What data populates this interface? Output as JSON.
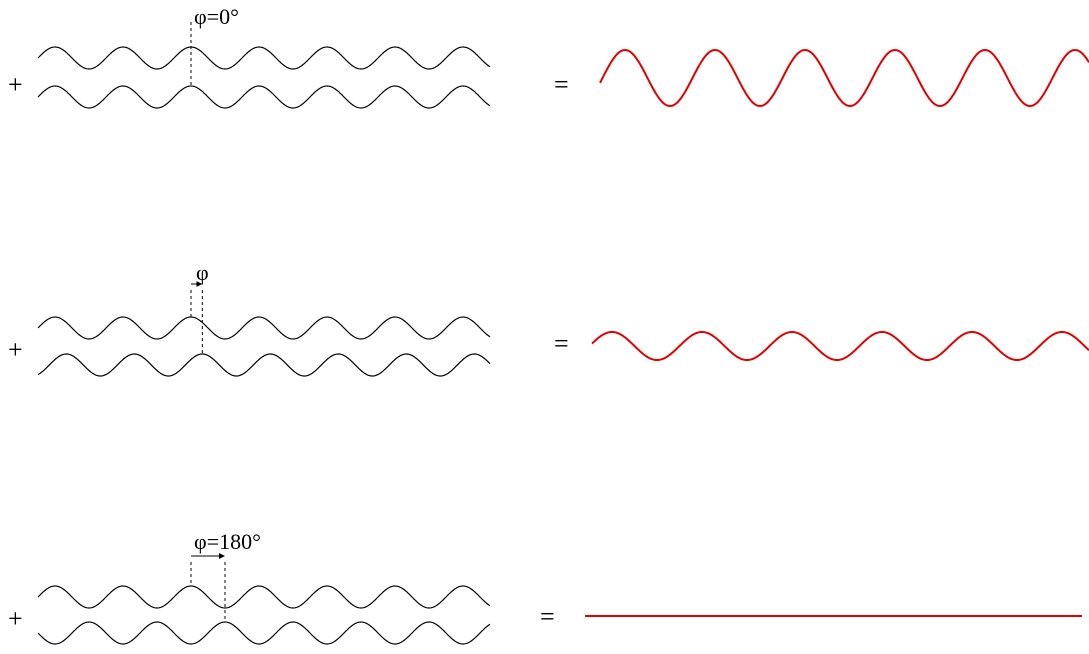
{
  "colors": {
    "input_wave": "#000000",
    "result_wave": "#e00000"
  },
  "rows": [
    {
      "plus": "+",
      "equals": "=",
      "phase_label": "φ=0°",
      "phase_deg": 0,
      "result_relative_amplitude": 2
    },
    {
      "plus": "+",
      "equals": "=",
      "phase_label": "φ",
      "phase_deg": 60,
      "result_relative_amplitude": 1
    },
    {
      "plus": "+",
      "equals": "=",
      "phase_label": "φ=180°",
      "phase_deg": 180,
      "result_relative_amplitude": 0
    }
  ]
}
